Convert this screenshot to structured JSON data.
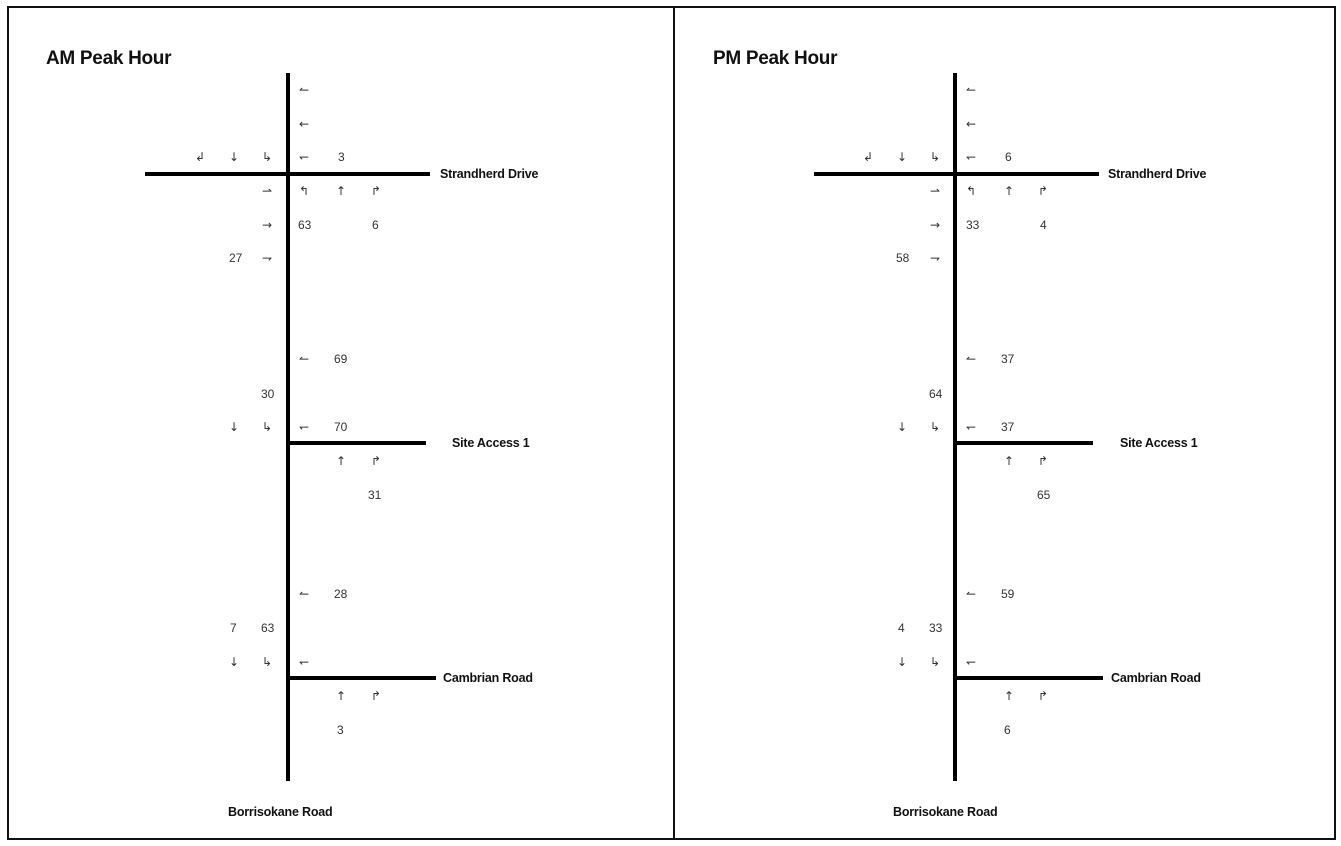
{
  "panels": [
    {
      "title": "AM Peak Hour",
      "roads": {
        "north": "Strandherd Drive",
        "middle": "Site Access 1",
        "south": "Cambrian Road",
        "main": "Borrisokane Road"
      },
      "volumes": {
        "strandherd_wb_left": "3",
        "strandherd_nb_left": "63",
        "strandherd_nb_right": "6",
        "strandherd_eb_right": "27",
        "site_wb_right": "69",
        "site_sb_right": "30",
        "site_wb_left": "70",
        "site_nb_right": "31",
        "cambrian_wb_right": "28",
        "cambrian_sb_thru": "7",
        "cambrian_sb_right": "63",
        "cambrian_nb_thru": "3"
      }
    },
    {
      "title": "PM Peak Hour",
      "roads": {
        "north": "Strandherd Drive",
        "middle": "Site Access 1",
        "south": "Cambrian Road",
        "main": "Borrisokane Road"
      },
      "volumes": {
        "strandherd_wb_left": "6",
        "strandherd_nb_left": "33",
        "strandherd_nb_right": "4",
        "strandherd_eb_right": "58",
        "site_wb_right": "37",
        "site_sb_right": "64",
        "site_wb_left": "37",
        "site_nb_right": "65",
        "cambrian_wb_right": "59",
        "cambrian_sb_thru": "4",
        "cambrian_sb_right": "33",
        "cambrian_nb_thru": "6"
      }
    }
  ],
  "arrows": {
    "wb_right": "↼",
    "wb_thru": "←",
    "wb_left": "↽",
    "sb_left": "↲",
    "sb_thru": "↓",
    "sb_right": "↳",
    "eb_left": "⇀",
    "eb_thru": "→",
    "eb_right": "⇁",
    "nb_left": "↰",
    "nb_thru": "↑",
    "nb_right": "↱"
  }
}
